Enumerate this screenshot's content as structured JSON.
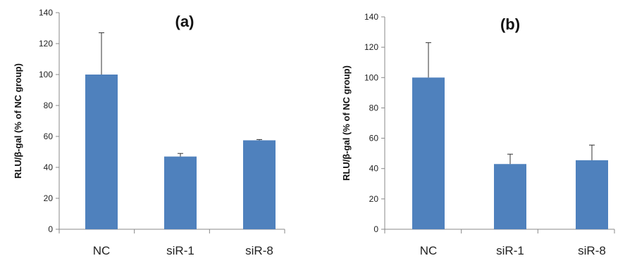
{
  "colors": {
    "bar": "#4f81bd",
    "axis": "#888888",
    "error": "#333333"
  },
  "chart_data": [
    {
      "type": "bar",
      "title": "(a)",
      "ylabel": "RLU/β-gal (% of NC group)",
      "xlabel": "",
      "categories": [
        "NC",
        "siR-1",
        "siR-8"
      ],
      "values": [
        100,
        47,
        57.5
      ],
      "errors": [
        27,
        2,
        0.5
      ],
      "ylim": [
        0,
        140
      ],
      "yticks": [
        0,
        20,
        40,
        60,
        80,
        100,
        120,
        140
      ],
      "grid": false
    },
    {
      "type": "bar",
      "title": "(b)",
      "ylabel": "RLU/β-gal (% of NC group)",
      "xlabel": "",
      "categories": [
        "NC",
        "siR-1",
        "siR-8"
      ],
      "values": [
        100,
        43,
        45.5
      ],
      "errors": [
        23,
        6.5,
        10
      ],
      "ylim": [
        0,
        140
      ],
      "yticks": [
        0,
        20,
        40,
        60,
        80,
        100,
        120,
        140
      ],
      "grid": false
    }
  ]
}
